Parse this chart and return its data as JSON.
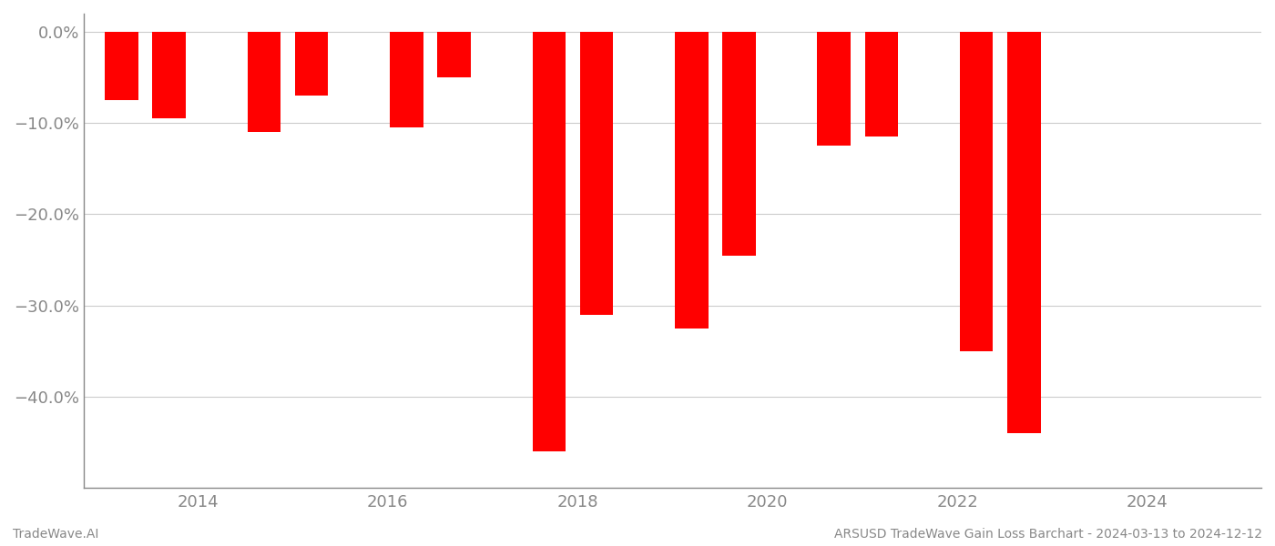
{
  "years": [
    2013.2,
    2013.7,
    2014.7,
    2015.2,
    2016.2,
    2016.7,
    2017.7,
    2018.2,
    2019.2,
    2019.7,
    2020.7,
    2021.2,
    2022.2,
    2022.7
  ],
  "values": [
    -7.5,
    -9.5,
    -11.0,
    -7.0,
    -10.5,
    -5.0,
    -46.0,
    -31.0,
    -32.5,
    -24.5,
    -12.5,
    -11.5,
    -35.0,
    -44.0
  ],
  "bar_color": "#ff0000",
  "bar_width": 0.35,
  "ylim": [
    -50,
    2
  ],
  "yticks": [
    0.0,
    -10.0,
    -20.0,
    -30.0,
    -40.0
  ],
  "xticks": [
    2014,
    2016,
    2018,
    2020,
    2022,
    2024
  ],
  "xlim": [
    2012.8,
    2025.2
  ],
  "grid_color": "#cccccc",
  "axis_color": "#888888",
  "footer_left": "TradeWave.AI",
  "footer_right": "ARSUSD TradeWave Gain Loss Barchart - 2024-03-13 to 2024-12-12",
  "background_color": "#ffffff",
  "text_color": "#888888",
  "tick_fontsize": 13
}
